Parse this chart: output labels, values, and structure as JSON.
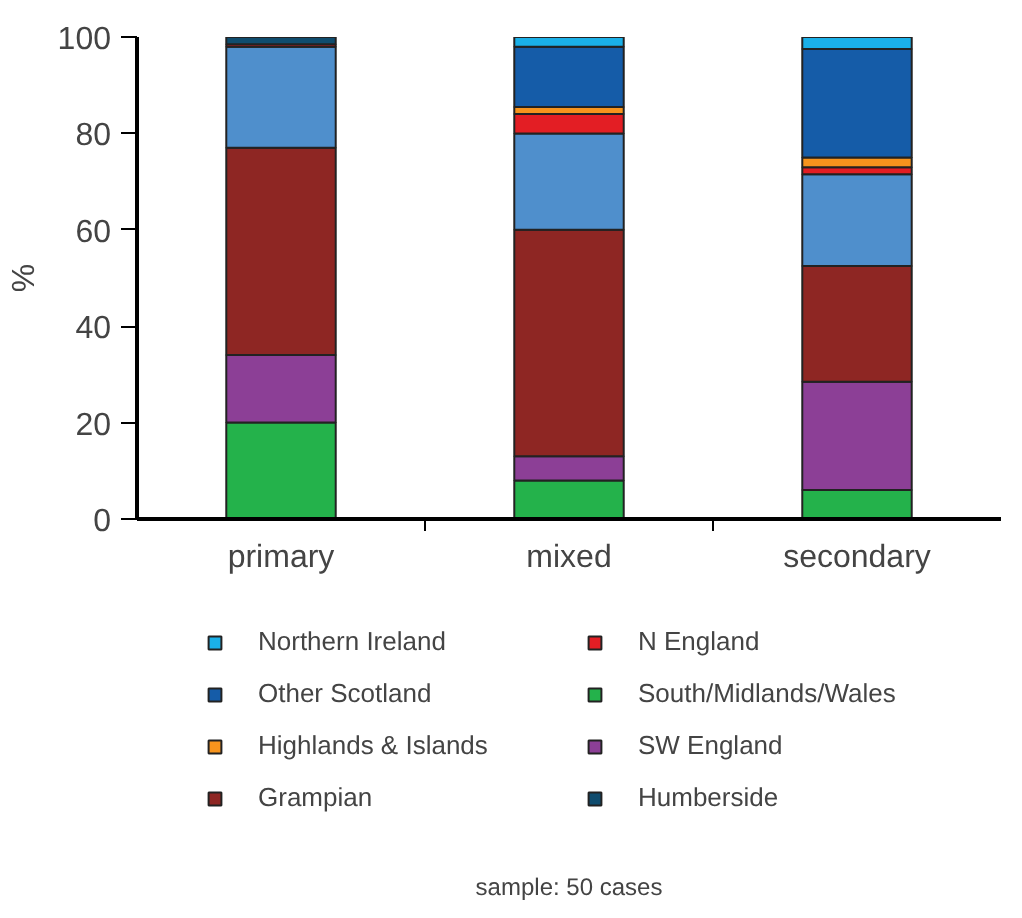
{
  "chart_data": {
    "type": "bar",
    "stacked": true,
    "categories": [
      "primary",
      "mixed",
      "secondary"
    ],
    "ylabel": "%",
    "ylim": [
      0,
      100
    ],
    "yticks": [
      0,
      20,
      40,
      60,
      80,
      100
    ],
    "grid": false,
    "legend": "bottom",
    "annotations": [
      "sample: 50 cases"
    ],
    "series": [
      {
        "name": "South/Midlands/Wales",
        "color": "#24b24b",
        "values": [
          20,
          8,
          6
        ]
      },
      {
        "name": "SW England",
        "color": "#8c3f96",
        "values": [
          14,
          5,
          22.5
        ]
      },
      {
        "name": "Grampian",
        "color": "#8e2623",
        "values": [
          43,
          47,
          24
        ]
      },
      {
        "color": "#4f8fcc",
        "values": [
          21,
          20,
          19
        ]
      },
      {
        "name": "N England",
        "color": "#e31e24",
        "values": [
          0.5,
          4,
          1.5
        ]
      },
      {
        "name": "Humberside",
        "color": "#0f4c6e",
        "values": [
          1.5,
          0,
          0
        ]
      },
      {
        "name": "Highlands & Islands",
        "color": "#f7941d",
        "values": [
          0,
          1.5,
          2
        ]
      },
      {
        "name": "Other Scotland",
        "color": "#155ca8",
        "values": [
          0,
          12.5,
          22.5
        ]
      },
      {
        "name": "Northern Ireland",
        "color": "#1ab0e8",
        "values": [
          0,
          2,
          2.5
        ]
      }
    ]
  }
}
